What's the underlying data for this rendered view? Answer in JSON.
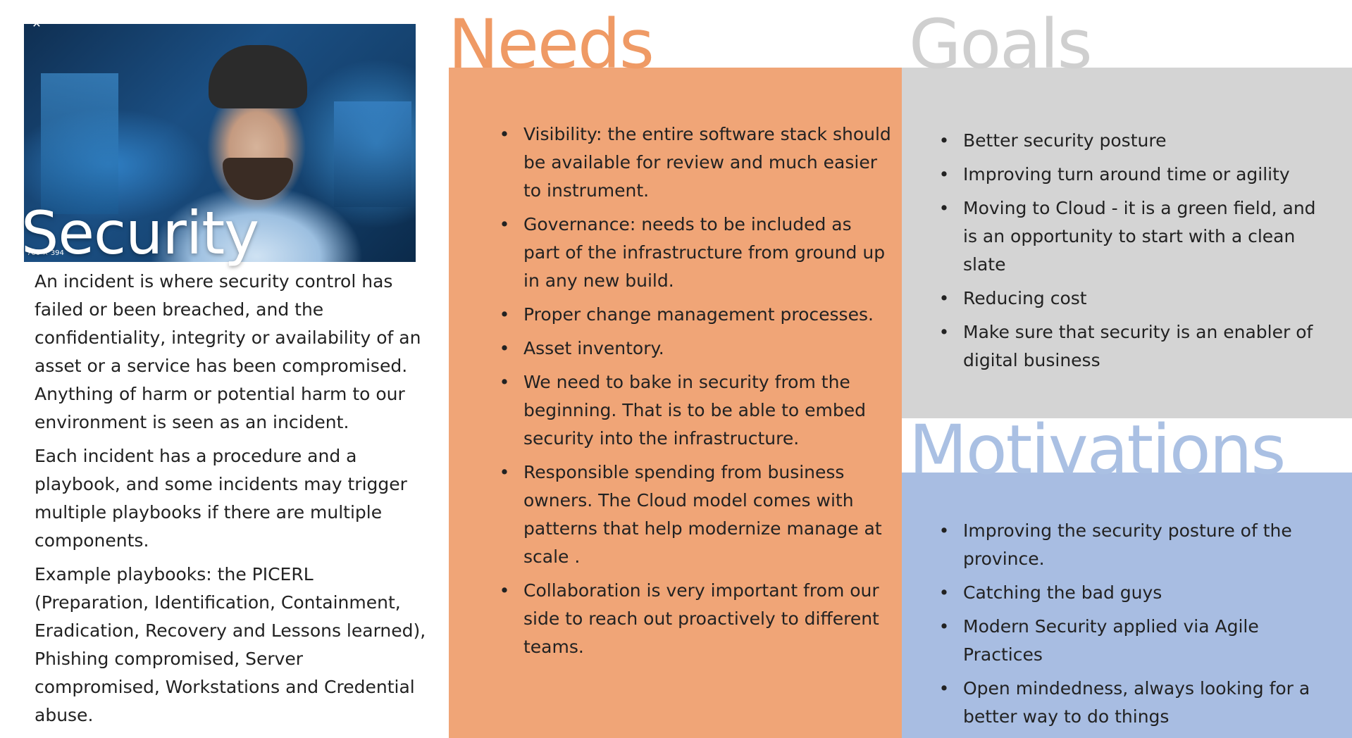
{
  "security": {
    "title": "Security",
    "close_glyph": "✕",
    "image_caption": "700 × 394",
    "paragraphs": [
      "An incident is where security control has failed or been breached, and the confidentiality, integrity or availability of an asset or a service has been compromised. Anything of harm or potential harm to our environment is seen as an incident.",
      "Each incident has a procedure and a playbook, and some incidents may trigger multiple playbooks if there are multiple components.",
      "Example playbooks: the PICERL (Preparation, Identification, Containment, Eradication, Recovery and Lessons learned), Phishing compromised, Server compromised, Workstations and Credential abuse."
    ]
  },
  "needs": {
    "title": "Needs",
    "color": "#f0a577",
    "items": [
      "Visibility: the entire software stack  should be available for review and much easier to instrument.",
      "Governance: needs to be included as part of the infrastructure from ground up in any new build.",
      "Proper change management processes.",
      "Asset inventory.",
      "We need to bake in security from the beginning. That is to be able to embed security into the infrastructure.",
      "Responsible spending from business owners. The Cloud model comes with patterns that help modernize manage at scale .",
      "Collaboration is very important from our side to reach out proactively to different teams."
    ]
  },
  "goals": {
    "title": "Goals",
    "color": "#d4d4d4",
    "items": [
      "Better security posture",
      "Improving turn around time or agility",
      "Moving to Cloud - it is a green field, and is an opportunity to start with a clean slate",
      "Reducing cost",
      "Make sure that security is an enabler of digital business"
    ]
  },
  "motivations": {
    "title": "Motivations",
    "color": "#a8bde2",
    "items": [
      "Improving the security posture of the province.",
      "Catching the bad guys",
      "Modern Security applied via Agile Practices",
      "Open mindedness, always looking for a better way to do things"
    ]
  },
  "bullet_glyph": "•"
}
